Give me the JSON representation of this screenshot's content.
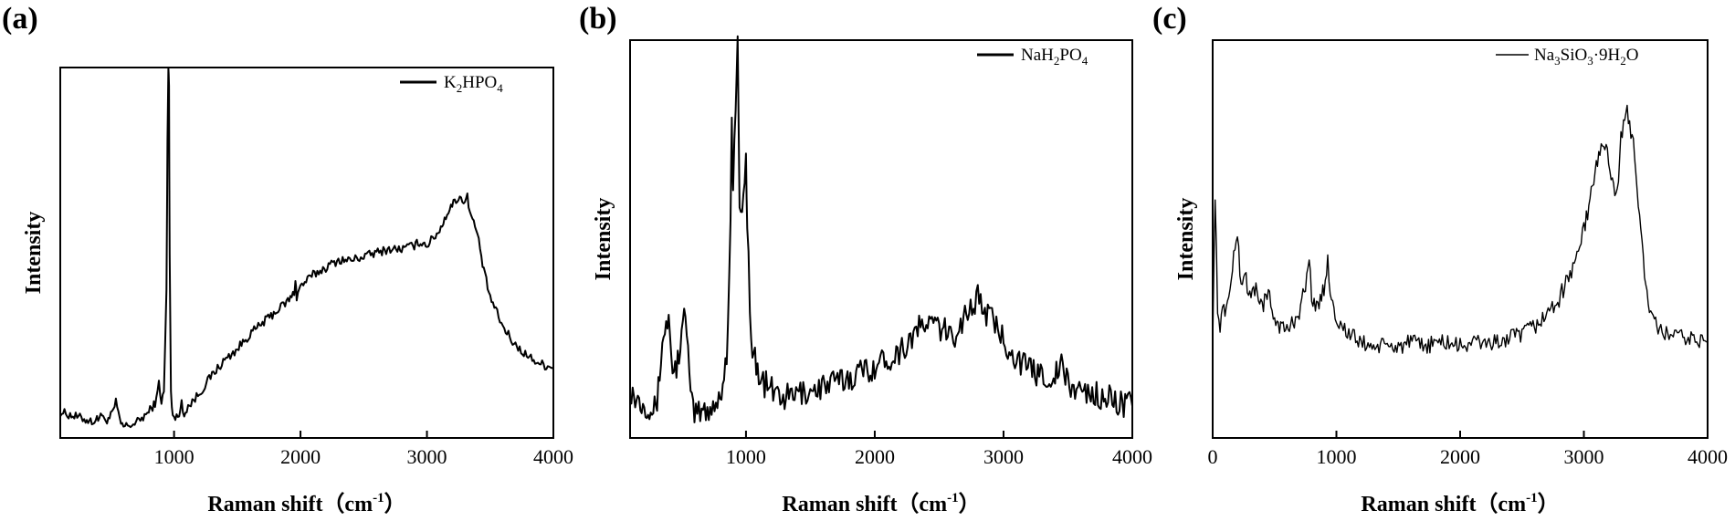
{
  "chart_data": [
    {
      "type": "line",
      "panel_label": "(a)",
      "title": "",
      "xlabel": "Raman shift（cm",
      "xlabel_sup": "-1",
      "xlabel_end": "）",
      "ylabel": "Intensity",
      "xlim": [
        100,
        4000
      ],
      "ylim": [
        0,
        1
      ],
      "yticks_shown": false,
      "xticks": [
        1000,
        2000,
        3000,
        4000
      ],
      "legend": {
        "label": "K",
        "sub1": "2",
        "mid": "HPO",
        "sub2": "4",
        "position": "top-right"
      },
      "series": [
        {
          "name": "K2HPO4",
          "x": [
            100,
            200,
            300,
            350,
            400,
            420,
            440,
            480,
            520,
            540,
            560,
            580,
            600,
            700,
            800,
            860,
            880,
            900,
            920,
            940,
            948,
            955,
            960,
            965,
            975,
            990,
            1010,
            1040,
            1060,
            1080,
            1100,
            1200,
            1300,
            1400,
            1500,
            1600,
            1700,
            1800,
            1900,
            1950,
            1960,
            1970,
            2000,
            2100,
            2200,
            2300,
            2400,
            2500,
            2600,
            2700,
            2800,
            2900,
            2950,
            3000,
            3100,
            3150,
            3200,
            3250,
            3300,
            3320,
            3350,
            3400,
            3450,
            3500,
            3600,
            3700,
            3800,
            3900,
            4000
          ],
          "y": [
            0.07,
            0.06,
            0.05,
            0.045,
            0.05,
            0.07,
            0.05,
            0.05,
            0.07,
            0.1,
            0.06,
            0.04,
            0.03,
            0.04,
            0.07,
            0.1,
            0.15,
            0.1,
            0.12,
            0.4,
            0.8,
            1.0,
            0.95,
            0.5,
            0.12,
            0.07,
            0.05,
            0.06,
            0.1,
            0.06,
            0.08,
            0.12,
            0.17,
            0.21,
            0.24,
            0.28,
            0.31,
            0.34,
            0.37,
            0.39,
            0.43,
            0.38,
            0.41,
            0.44,
            0.46,
            0.48,
            0.48,
            0.49,
            0.5,
            0.51,
            0.51,
            0.52,
            0.53,
            0.52,
            0.56,
            0.6,
            0.63,
            0.65,
            0.64,
            0.65,
            0.6,
            0.55,
            0.45,
            0.38,
            0.3,
            0.25,
            0.22,
            0.2,
            0.19
          ]
        }
      ]
    },
    {
      "type": "line",
      "panel_label": "(b)",
      "title": "",
      "xlabel": "Raman shift（cm",
      "xlabel_sup": "-1",
      "xlabel_end": "）",
      "ylabel": "Intensity",
      "xlim": [
        100,
        4000
      ],
      "ylim": [
        0,
        1
      ],
      "yticks_shown": false,
      "xticks": [
        1000,
        2000,
        3000,
        4000
      ],
      "legend": {
        "label": "NaH",
        "sub1": "2",
        "mid": "PO",
        "sub2": "4",
        "position": "top-right"
      },
      "series": [
        {
          "name": "NaH2PO4",
          "x": [
            100,
            150,
            200,
            250,
            300,
            330,
            350,
            380,
            400,
            420,
            440,
            470,
            500,
            520,
            540,
            560,
            580,
            600,
            700,
            800,
            850,
            880,
            890,
            900,
            920,
            935,
            950,
            980,
            1000,
            1010,
            1040,
            1100,
            1200,
            1300,
            1400,
            1500,
            1600,
            1700,
            1800,
            1900,
            2000,
            2100,
            2200,
            2300,
            2400,
            2500,
            2600,
            2700,
            2800,
            2900,
            3000,
            3100,
            3200,
            3300,
            3400,
            3450,
            3500,
            3600,
            3700,
            3800,
            3900,
            4000
          ],
          "y": [
            0.12,
            0.1,
            0.09,
            0.08,
            0.07,
            0.15,
            0.25,
            0.28,
            0.3,
            0.22,
            0.15,
            0.2,
            0.25,
            0.3,
            0.28,
            0.15,
            0.08,
            0.06,
            0.07,
            0.1,
            0.2,
            0.55,
            0.8,
            0.6,
            0.85,
            1.0,
            0.55,
            0.6,
            0.7,
            0.55,
            0.25,
            0.15,
            0.12,
            0.1,
            0.11,
            0.12,
            0.13,
            0.14,
            0.15,
            0.17,
            0.18,
            0.2,
            0.22,
            0.26,
            0.29,
            0.28,
            0.25,
            0.31,
            0.35,
            0.3,
            0.25,
            0.2,
            0.17,
            0.16,
            0.15,
            0.19,
            0.13,
            0.12,
            0.11,
            0.1,
            0.09,
            0.08
          ]
        }
      ]
    },
    {
      "type": "line",
      "panel_label": "(c)",
      "title": "",
      "xlabel": "Raman shift（cm",
      "xlabel_sup": "-1",
      "xlabel_end": "）",
      "ylabel": "Intensity",
      "xlim": [
        0,
        4000
      ],
      "ylim": [
        0,
        1
      ],
      "yticks_shown": false,
      "xticks": [
        0,
        1000,
        2000,
        3000,
        4000
      ],
      "legend": {
        "label": "Na",
        "sub1": "3",
        "mid": "SiO",
        "sub2": "3",
        "tail": "·9H",
        "sub3": "2",
        "end": "O",
        "position": "top-right"
      },
      "series": [
        {
          "name": "Na3SiO3·9H2O",
          "x": [
            0,
            20,
            40,
            60,
            80,
            100,
            150,
            200,
            230,
            260,
            300,
            350,
            400,
            450,
            500,
            550,
            600,
            650,
            700,
            750,
            780,
            800,
            850,
            900,
            930,
            960,
            1000,
            1100,
            1200,
            1300,
            1400,
            1500,
            1600,
            1700,
            1800,
            1900,
            2000,
            2100,
            2200,
            2300,
            2400,
            2500,
            2600,
            2700,
            2800,
            2900,
            3000,
            3050,
            3100,
            3150,
            3200,
            3250,
            3280,
            3300,
            3350,
            3370,
            3400,
            3450,
            3500,
            3550,
            3600,
            3700,
            3800,
            3900,
            4000
          ],
          "y": [
            0.25,
            0.62,
            0.3,
            0.28,
            0.35,
            0.3,
            0.4,
            0.52,
            0.38,
            0.42,
            0.35,
            0.38,
            0.33,
            0.36,
            0.3,
            0.28,
            0.27,
            0.29,
            0.32,
            0.38,
            0.45,
            0.36,
            0.32,
            0.38,
            0.44,
            0.35,
            0.3,
            0.26,
            0.24,
            0.23,
            0.23,
            0.23,
            0.24,
            0.23,
            0.24,
            0.24,
            0.23,
            0.24,
            0.24,
            0.24,
            0.25,
            0.26,
            0.28,
            0.31,
            0.35,
            0.42,
            0.52,
            0.6,
            0.68,
            0.75,
            0.7,
            0.62,
            0.65,
            0.75,
            0.82,
            0.78,
            0.76,
            0.55,
            0.38,
            0.3,
            0.27,
            0.26,
            0.25,
            0.25,
            0.24
          ]
        }
      ]
    }
  ]
}
